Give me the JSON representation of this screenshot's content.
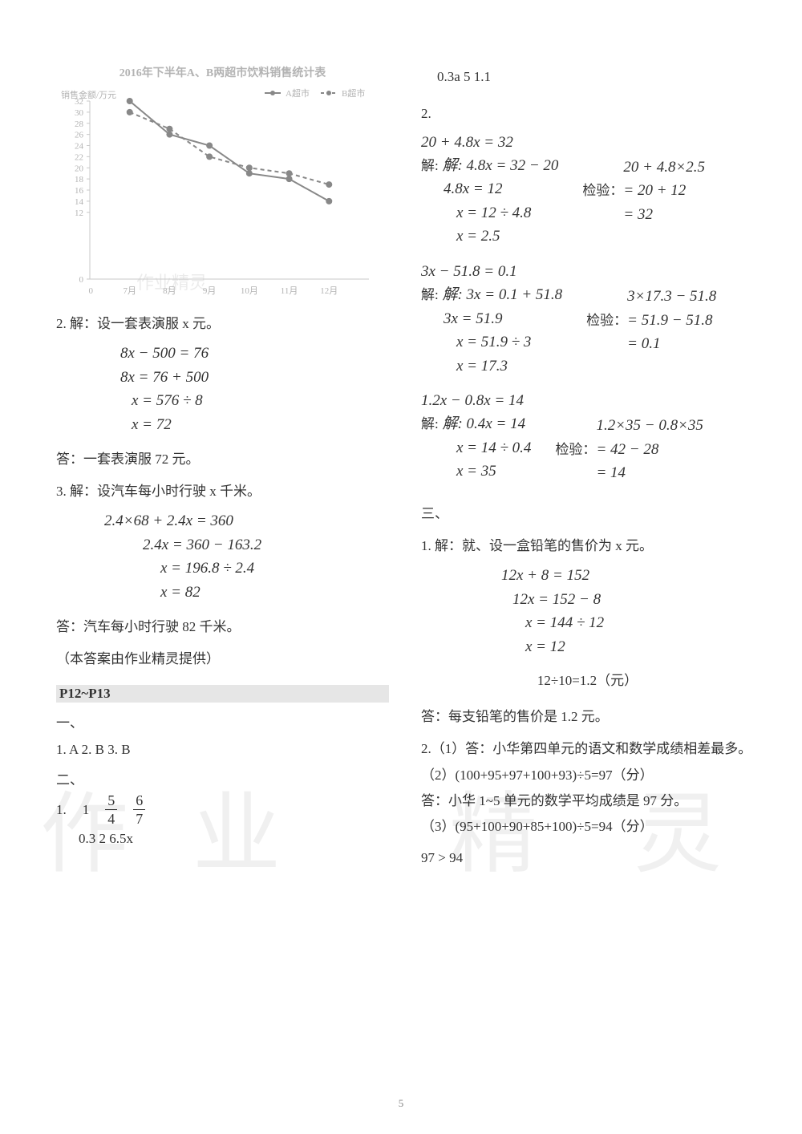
{
  "page_number": "5",
  "left": {
    "chart": {
      "type": "line",
      "title": "2016年下半年A、B两超市饮料销售统计表",
      "y_label": "销售金额/万元",
      "x_categories": [
        "7月",
        "8月",
        "9月",
        "10月",
        "11月",
        "12月"
      ],
      "y_ticks": [
        0,
        12,
        14,
        16,
        18,
        20,
        22,
        24,
        26,
        28,
        30,
        32
      ],
      "series": [
        {
          "name": "A超市",
          "color": "#888888",
          "dash": false,
          "values": [
            32,
            26,
            24,
            19,
            18,
            14
          ]
        },
        {
          "name": "B超市",
          "color": "#888888",
          "dash": true,
          "values": [
            30,
            27,
            22,
            20,
            19,
            17
          ]
        }
      ],
      "axis_color": "#c9c9c9",
      "grid_color": "#e5e5e5",
      "label_color": "#b3b3b3",
      "label_fontsize": 11,
      "title_fontsize": 14,
      "title_color": "#b3b3b3",
      "background_color": "#ffffff",
      "marker": "circle",
      "marker_size": 4,
      "line_width": 2,
      "xlim": [
        0,
        7
      ],
      "ylim": [
        0,
        32
      ]
    },
    "p2": {
      "head": "2. 解：设一套表演服 x 元。",
      "eq1": "8x − 500 = 76",
      "eq2": "8x = 76 + 500",
      "eq3": "x = 576 ÷ 8",
      "eq4": "x = 72",
      "ans": "答：一套表演服 72 元。"
    },
    "p3": {
      "head": "3. 解：设汽车每小时行驶 x 千米。",
      "eq1": "2.4×68 + 2.4x = 360",
      "eq2": "2.4x = 360 − 163.2",
      "eq3": "x = 196.8 ÷ 2.4",
      "eq4": "x = 82",
      "ans": "答：汽车每小时行驶 82 千米。"
    },
    "credit": "（本答案由作业精灵提供）",
    "section": "P12~P13",
    "section1": "一、",
    "mc": "1. A   2. B   3. B",
    "section2": "二、",
    "q1_row1": {
      "a": "1",
      "f1n": "5",
      "f1d": "4",
      "f2n": "6",
      "f2d": "7"
    },
    "q1_row2": "0.3   2   6.5x",
    "q1_label": "1."
  },
  "right": {
    "topline": "0.3a   5   1.1",
    "q2_label": "2.",
    "eqA": {
      "l1": "20 + 4.8x = 32",
      "l2": "解: 4.8x = 32 − 20",
      "l3": "4.8x = 12",
      "l4": "x = 12 ÷ 4.8",
      "l5": "x = 2.5",
      "chk_lbl": "检验：",
      "c1": "20 + 4.8×2.5",
      "c2": "= 20 + 12",
      "c3": "= 32"
    },
    "eqB": {
      "l1": "3x − 51.8 = 0.1",
      "l2": "解: 3x = 0.1 + 51.8",
      "l3": "3x = 51.9",
      "l4": "x = 51.9 ÷ 3",
      "l5": "x = 17.3",
      "chk_lbl": "检验：",
      "c1": "3×17.3 − 51.8",
      "c2": "= 51.9 − 51.8",
      "c3": "= 0.1"
    },
    "eqC": {
      "l1": "1.2x − 0.8x = 14",
      "l2": "解: 0.4x = 14",
      "l3": "x = 14 ÷ 0.4",
      "l4": "x = 35",
      "chk_lbl": "检验：",
      "c1": "1.2×35 − 0.8×35",
      "c2": "= 42 − 28",
      "c3": "= 14"
    },
    "section3": "三、",
    "p1": {
      "head": "1. 解：就、设一盒铅笔的售价为 x 元。",
      "eq1": "12x + 8 = 152",
      "eq2": "12x = 152 − 8",
      "eq3": "x = 144 ÷ 12",
      "eq4": "x = 12",
      "calc": "12÷10=1.2（元）",
      "ans": "答：每支铅笔的售价是 1.2 元。"
    },
    "p2": {
      "l1": "2.（1）答：小华第四单元的语文和数学成绩相差最多。",
      "l2": "（2）(100+95+97+100+93)÷5=97（分）",
      "l3": "答：小华 1~5 单元的数学平均成绩是 97 分。",
      "l4": "（3）(95+100+90+85+100)÷5=94（分）",
      "l5": "97 > 94"
    }
  },
  "watermarks": {
    "big1": "作",
    "big2": "业",
    "big3": "精",
    "big4": "灵",
    "small": "作业精灵"
  }
}
